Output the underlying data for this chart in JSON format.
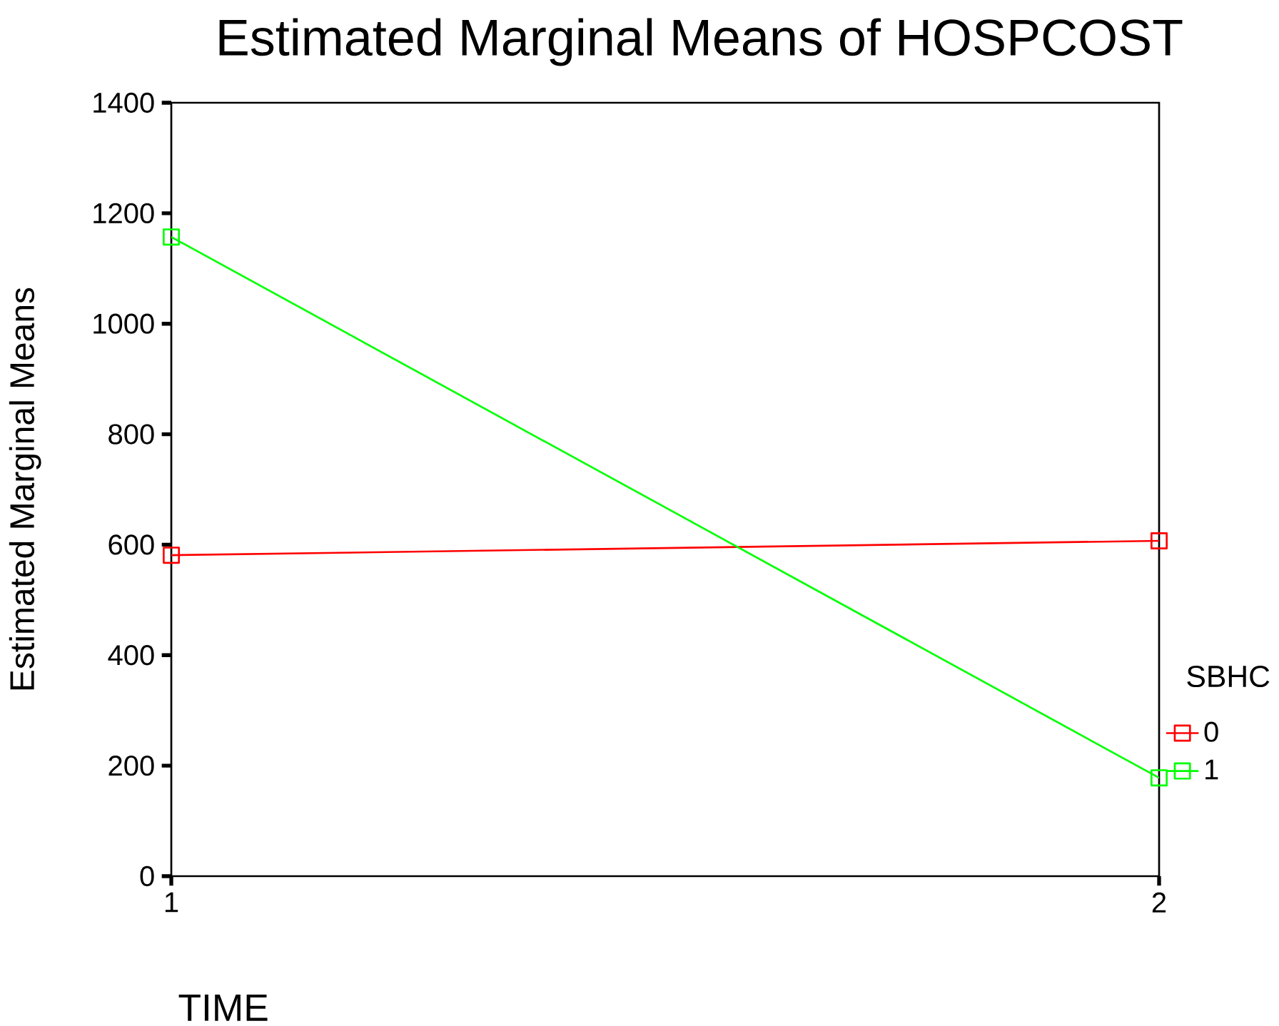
{
  "chart_data": {
    "type": "line",
    "title": "Estimated Marginal Means of HOSPCOST",
    "xlabel": "TIME",
    "ylabel": "Estimated Marginal Means",
    "legend_title": "SBHC",
    "x": [
      1,
      2
    ],
    "series": [
      {
        "name": "0",
        "color": "#ff0000",
        "values": [
          581,
          607
        ]
      },
      {
        "name": "1",
        "color": "#00ff00",
        "values": [
          1157,
          178
        ]
      }
    ],
    "xlim": [
      1,
      2
    ],
    "xticks": [
      1,
      2
    ],
    "ylim": [
      0,
      1400
    ],
    "yticks": [
      0,
      200,
      400,
      600,
      800,
      1000,
      1200,
      1400
    ],
    "grid": false,
    "legend": "right",
    "marker": "square",
    "line_style": "solid"
  }
}
